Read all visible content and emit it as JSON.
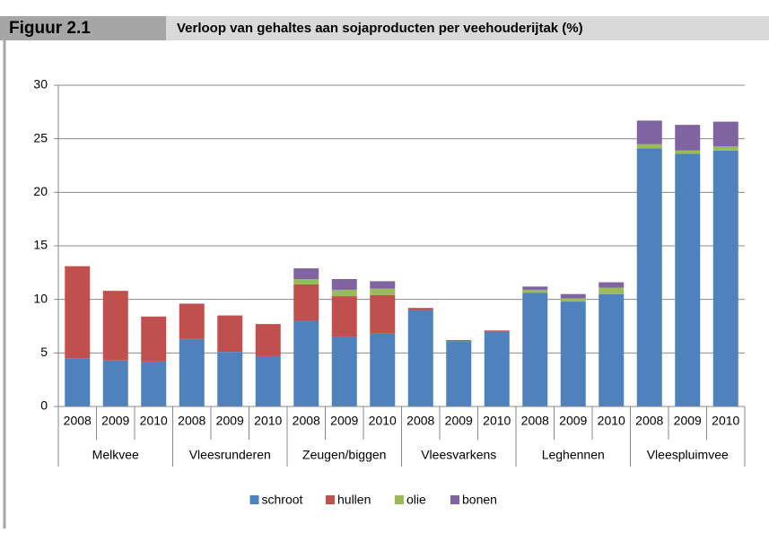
{
  "header": {
    "figure": "Figuur 2.1",
    "title": "Verloop van gehaltes aan sojaproducten per veehouderijtak (%)"
  },
  "chart_data": {
    "type": "stacked_bar",
    "categories": [
      "2008",
      "2009",
      "2010",
      "2008",
      "2009",
      "2010",
      "2008",
      "2009",
      "2010",
      "2008",
      "2009",
      "2010",
      "2008",
      "2009",
      "2010",
      "2008",
      "2009",
      "2010"
    ],
    "groups": [
      "Melkvee",
      "Vleesrunderen",
      "Zeugen/biggen",
      "Vleesvarkens",
      "Leghennen",
      "Vleespluimvee"
    ],
    "series": [
      {
        "name": "schroot",
        "color": "#4f81bd",
        "values": [
          4.5,
          4.3,
          4.2,
          6.3,
          5.1,
          4.7,
          8.0,
          6.5,
          6.8,
          9.0,
          6.1,
          7.0,
          10.6,
          9.8,
          10.5,
          24.1,
          23.6,
          23.9
        ]
      },
      {
        "name": "hullen",
        "color": "#c0504d",
        "values": [
          8.6,
          6.5,
          4.2,
          3.3,
          3.4,
          3.0,
          3.4,
          3.8,
          3.6,
          0.2,
          0.1,
          0.1,
          0,
          0,
          0,
          0,
          0,
          0
        ]
      },
      {
        "name": "olie",
        "color": "#9bbb59",
        "values": [
          0,
          0,
          0,
          0,
          0,
          0,
          0.5,
          0.6,
          0.6,
          0,
          0,
          0,
          0.3,
          0.3,
          0.6,
          0.4,
          0.3,
          0.4
        ]
      },
      {
        "name": "bonen",
        "color": "#8064a2",
        "values": [
          0,
          0,
          0,
          0,
          0,
          0,
          1.0,
          1.0,
          0.7,
          0,
          0,
          0,
          0.3,
          0.4,
          0.5,
          2.2,
          2.4,
          2.3
        ]
      }
    ],
    "ylim": [
      0,
      30
    ],
    "yticks": [
      0,
      5,
      10,
      15,
      20,
      25,
      30
    ],
    "grid": true,
    "legend": "bottom"
  }
}
